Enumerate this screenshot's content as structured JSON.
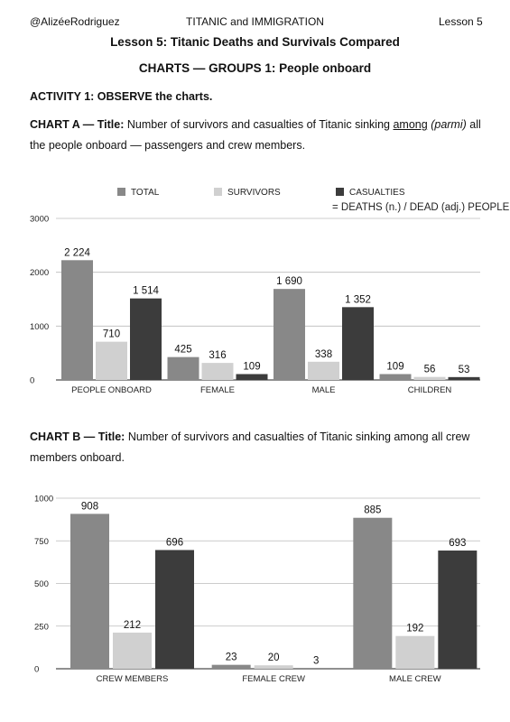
{
  "header": {
    "author": "@AlizéeRodriguez",
    "course": "TITANIC and IMMIGRATION",
    "lesson": "Lesson 5"
  },
  "title": "Lesson 5: Titanic Deaths and Survivals Compared",
  "subtitle": "CHARTS — GROUPS 1: People onboard",
  "activity": "ACTIVITY 1: OBSERVE the charts.",
  "chart_a_caption": {
    "label": "CHART A — Title:",
    "text1": "Number of survivors and casualties of Titanic sinking",
    "underlined": "among",
    "italic": "(parmi)",
    "text2": "all the people onboard — passengers and crew members."
  },
  "chart_b_caption": {
    "label": "CHART B — Title:",
    "text": "Number of survivors and casualties of Titanic sinking among all crew members onboard."
  },
  "colors": {
    "total": "#888888",
    "survivors": "#d0d0d0",
    "casualties": "#3c3c3c"
  },
  "chart_data": [
    {
      "type": "bar",
      "title": "",
      "categories": [
        "PEOPLE ONBOARD",
        "FEMALE",
        "MALE",
        "CHILDREN"
      ],
      "series": [
        {
          "name": "TOTAL",
          "values": [
            2224,
            425,
            1690,
            109
          ],
          "labels": [
            "2 224",
            "425",
            "1 690",
            "109"
          ]
        },
        {
          "name": "SURVIVORS",
          "values": [
            710,
            316,
            338,
            56
          ],
          "labels": [
            "710",
            "316",
            "338",
            "56"
          ]
        },
        {
          "name": "CASUALTIES",
          "values": [
            1514,
            109,
            1352,
            53
          ],
          "labels": [
            "1 514",
            "109",
            "1 352",
            "53"
          ]
        }
      ],
      "ylim": [
        0,
        3000
      ],
      "yticks": [
        0,
        1000,
        2000,
        3000
      ],
      "legend_note": "= DEATHS (n.) / DEAD (adj.) PEOPLE",
      "legend_position": "top",
      "grid": true
    },
    {
      "type": "bar",
      "title": "",
      "categories": [
        "CREW MEMBERS",
        "FEMALE CREW",
        "MALE CREW"
      ],
      "series": [
        {
          "name": "TOTAL",
          "values": [
            908,
            23,
            885
          ],
          "labels": [
            "908",
            "23",
            "885"
          ]
        },
        {
          "name": "SURVIVORS",
          "values": [
            212,
            20,
            192
          ],
          "labels": [
            "212",
            "20",
            "192"
          ]
        },
        {
          "name": "CASUALTIES",
          "values": [
            696,
            3,
            693
          ],
          "labels": [
            "696",
            "3",
            "693"
          ]
        }
      ],
      "ylim": [
        0,
        1000
      ],
      "yticks": [
        0,
        250,
        500,
        750,
        1000
      ],
      "grid": true
    }
  ]
}
